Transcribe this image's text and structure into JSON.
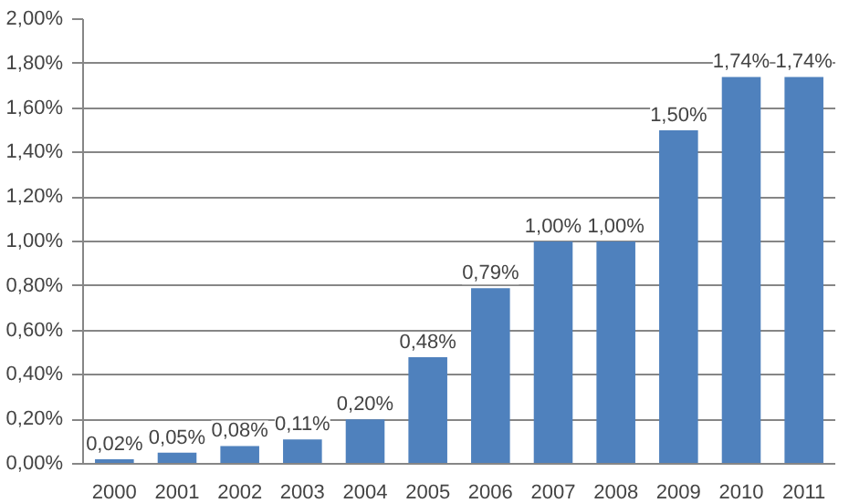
{
  "chart_data": {
    "type": "bar",
    "categories": [
      "2000",
      "2001",
      "2002",
      "2003",
      "2004",
      "2005",
      "2006",
      "2007",
      "2008",
      "2009",
      "2010",
      "2011"
    ],
    "values": [
      0.02,
      0.05,
      0.08,
      0.11,
      0.2,
      0.48,
      0.79,
      1.0,
      1.0,
      1.5,
      1.74,
      1.74
    ],
    "value_labels": [
      "0,02%",
      "0,05%",
      "0,08%",
      "0,11%",
      "0,20%",
      "0,48%",
      "0,79%",
      "1,00%",
      "1,00%",
      "1,50%",
      "1,74%",
      "1,74%"
    ],
    "color": "#4f81bd",
    "ylim": [
      0,
      2.0
    ],
    "yticks": [
      {
        "value": 0,
        "label": "0,00%"
      },
      {
        "value": 0.2,
        "label": "0,20%"
      },
      {
        "value": 0.4,
        "label": "0,40%"
      },
      {
        "value": 0.6,
        "label": "0,60%"
      },
      {
        "value": 0.8,
        "label": "0,80%"
      },
      {
        "value": 1.0,
        "label": "1,00%"
      },
      {
        "value": 1.2,
        "label": "1,20%"
      },
      {
        "value": 1.4,
        "label": "1,40%"
      },
      {
        "value": 1.6,
        "label": "1,60%"
      },
      {
        "value": 1.8,
        "label": "1,80%"
      },
      {
        "value": 2.0,
        "label": "2,00%"
      }
    ],
    "grid": "y"
  }
}
